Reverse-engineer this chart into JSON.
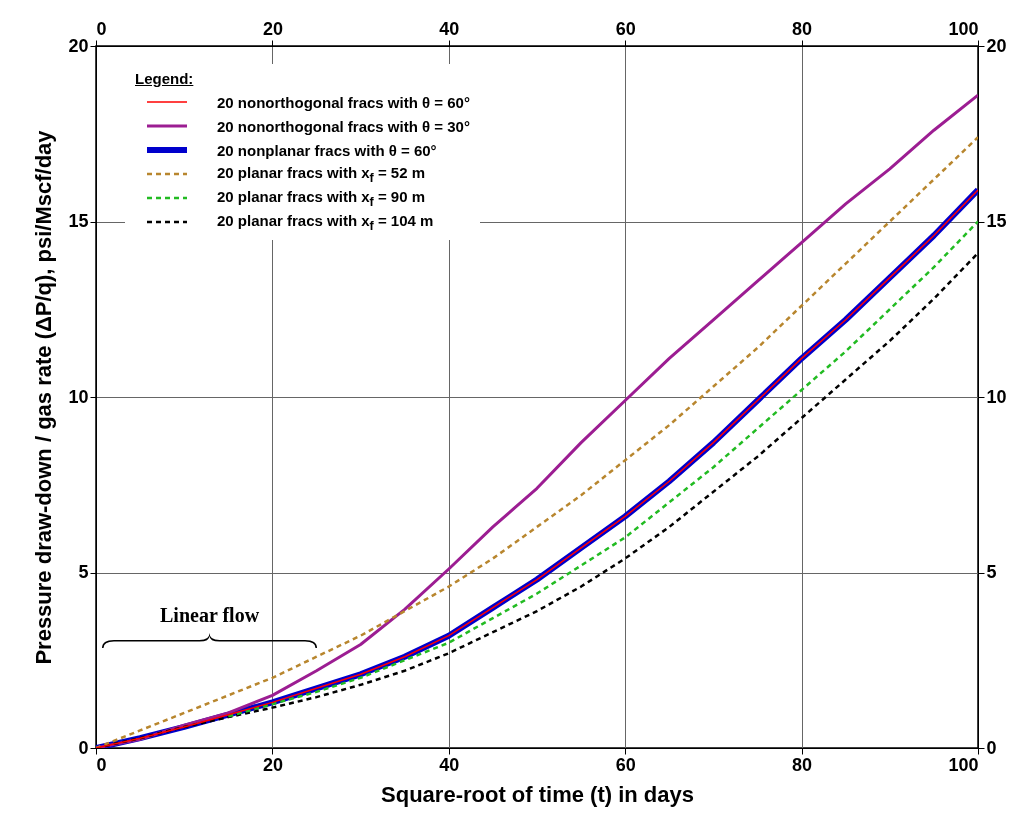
{
  "chart_data": {
    "type": "line",
    "xlabel": "Square-root of time (t) in days",
    "ylabel": "Pressure draw-down / gas rate (ΔP/q), psi/Mscf/day",
    "legend_title": "Legend:",
    "x": [
      0,
      5,
      10,
      15,
      20,
      25,
      30,
      35,
      40,
      45,
      50,
      55,
      60,
      65,
      70,
      75,
      80,
      85,
      90,
      95,
      100
    ],
    "series": [
      {
        "name": "20 nonorthogonal fracs with θ = 60°",
        "color": "#ff0000",
        "line_style": "solid",
        "values": [
          0,
          0.28,
          0.6,
          0.95,
          1.3,
          1.7,
          2.1,
          2.6,
          3.2,
          4.0,
          4.8,
          5.7,
          6.6,
          7.6,
          8.7,
          9.9,
          11.1,
          12.2,
          13.4,
          14.6,
          15.9
        ]
      },
      {
        "name": "20 nonorthogonal fracs with θ = 30°",
        "color": "#9c1d92",
        "line_style": "solid",
        "values": [
          0,
          0.25,
          0.65,
          1.0,
          1.5,
          2.2,
          2.95,
          3.95,
          5.1,
          6.3,
          7.4,
          8.7,
          9.9,
          11.1,
          12.2,
          13.3,
          14.4,
          15.5,
          16.5,
          17.6,
          18.6
        ]
      },
      {
        "name": "20 nonplanar fracs with θ = 60°",
        "color": "#0000cc",
        "line_style": "solid",
        "values": [
          0,
          0.28,
          0.6,
          0.95,
          1.3,
          1.7,
          2.1,
          2.6,
          3.2,
          4.0,
          4.8,
          5.7,
          6.6,
          7.6,
          8.7,
          9.9,
          11.1,
          12.2,
          13.4,
          14.6,
          15.9
        ]
      },
      {
        "name": "20 planar fracs with x$_{f}$ = 52 m",
        "color": "#b8862e",
        "line_style": "dashed",
        "values": [
          0,
          0.5,
          1.0,
          1.5,
          2.0,
          2.6,
          3.2,
          3.9,
          4.6,
          5.4,
          6.3,
          7.2,
          8.2,
          9.2,
          10.3,
          11.4,
          12.6,
          13.8,
          15.0,
          16.2,
          17.4
        ]
      },
      {
        "name": "20 planar fracs with x$_{f}$ = 90 m",
        "color": "#22bb22",
        "line_style": "dashed",
        "values": [
          null,
          null,
          null,
          0.9,
          1.25,
          1.6,
          2.0,
          2.5,
          3.0,
          3.7,
          4.4,
          5.2,
          6.0,
          7.0,
          8.0,
          9.1,
          10.2,
          11.3,
          12.5,
          13.7,
          15.0
        ]
      },
      {
        "name": "20 planar fracs with x$_{f}$ = 104 m",
        "color": "#000000",
        "line_style": "dashed",
        "values": [
          0,
          0.28,
          0.6,
          0.88,
          1.15,
          1.45,
          1.8,
          2.2,
          2.7,
          3.3,
          3.9,
          4.6,
          5.4,
          6.3,
          7.3,
          8.3,
          9.4,
          10.5,
          11.6,
          12.8,
          14.1
        ]
      }
    ],
    "xlim": [
      0,
      100
    ],
    "xticks": [
      0,
      20,
      40,
      60,
      80,
      100
    ],
    "ylim": [
      0,
      20
    ],
    "yticks": [
      0,
      5,
      10,
      15,
      20
    ],
    "x2lim": [
      0,
      100
    ],
    "x2ticks": [
      0,
      20,
      40,
      60,
      80,
      100
    ],
    "y2lim": [
      0,
      20
    ],
    "y2ticks": [
      0,
      5,
      10,
      15,
      20
    ],
    "annotations": [
      "Linear flow"
    ],
    "grid": true,
    "legend": "top left"
  }
}
